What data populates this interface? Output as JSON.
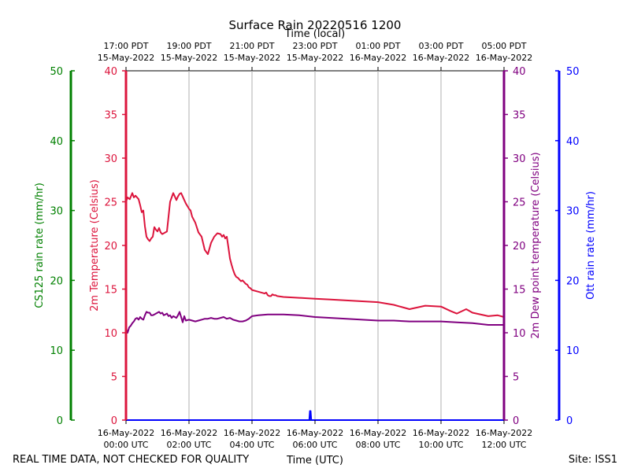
{
  "chart_data": {
    "type": "line",
    "title": "Surface Rain 20220516 1200",
    "top_axis_title": "Time (local)",
    "xlabel": "Time (UTC)",
    "footer_left": "REAL TIME DATA, NOT CHECKED FOR QUALITY",
    "footer_right": "Site: ISS1",
    "xlim": [
      0,
      12
    ],
    "xticks_utc": [
      {
        "x": 0,
        "date": "16-May-2022",
        "time": "00:00 UTC"
      },
      {
        "x": 2,
        "date": "16-May-2022",
        "time": "02:00 UTC"
      },
      {
        "x": 4,
        "date": "16-May-2022",
        "time": "04:00 UTC"
      },
      {
        "x": 6,
        "date": "16-May-2022",
        "time": "06:00 UTC"
      },
      {
        "x": 8,
        "date": "16-May-2022",
        "time": "08:00 UTC"
      },
      {
        "x": 10,
        "date": "16-May-2022",
        "time": "10:00 UTC"
      },
      {
        "x": 12,
        "date": "16-May-2022",
        "time": "12:00 UTC"
      }
    ],
    "xticks_local": [
      {
        "x": 0,
        "time": "17:00 PDT",
        "date": "15-May-2022"
      },
      {
        "x": 2,
        "time": "19:00 PDT",
        "date": "15-May-2022"
      },
      {
        "x": 4,
        "time": "21:00 PDT",
        "date": "15-May-2022"
      },
      {
        "x": 6,
        "time": "23:00 PDT",
        "date": "15-May-2022"
      },
      {
        "x": 8,
        "time": "01:00 PDT",
        "date": "16-May-2022"
      },
      {
        "x": 10,
        "time": "03:00 PDT",
        "date": "16-May-2022"
      },
      {
        "x": 12,
        "time": "05:00 PDT",
        "date": "16-May-2022"
      }
    ],
    "axes": {
      "temperature": {
        "label": "2m Temperature (Celsius)",
        "ylim": [
          0,
          40
        ],
        "ticks": [
          0,
          5,
          10,
          15,
          20,
          25,
          30,
          35,
          40
        ],
        "color": "#dc143c"
      },
      "dewpoint": {
        "label": "2m Dew point temperature (Celsius)",
        "ylim": [
          0,
          40
        ],
        "ticks": [
          0,
          5,
          10,
          15,
          20,
          25,
          30,
          35,
          40
        ],
        "color": "#800080"
      },
      "cs125": {
        "label": "CS125 rain rate (mm/hr)",
        "ylim": [
          0,
          50
        ],
        "ticks": [
          0,
          10,
          20,
          30,
          40,
          50
        ],
        "color": "#008000"
      },
      "ott": {
        "label": "Ott rain rate (mm/hr)",
        "ylim": [
          0,
          50
        ],
        "ticks": [
          0,
          10,
          20,
          30,
          40,
          50
        ],
        "color": "#0000ff"
      }
    },
    "series": [
      {
        "name": "2m Temperature",
        "axis": "temperature",
        "color": "#dc143c",
        "x": [
          0,
          0.05,
          0.12,
          0.2,
          0.25,
          0.3,
          0.4,
          0.45,
          0.5,
          0.55,
          0.6,
          0.65,
          0.7,
          0.75,
          0.8,
          0.85,
          0.9,
          0.95,
          1.0,
          1.05,
          1.1,
          1.15,
          1.2,
          1.3,
          1.4,
          1.5,
          1.6,
          1.65,
          1.7,
          1.75,
          1.8,
          1.85,
          1.9,
          1.95,
          2.0,
          2.05,
          2.1,
          2.2,
          2.3,
          2.4,
          2.5,
          2.6,
          2.7,
          2.8,
          2.9,
          3.0,
          3.05,
          3.1,
          3.15,
          3.2,
          3.25,
          3.3,
          3.35,
          3.4,
          3.45,
          3.5,
          3.55,
          3.6,
          3.65,
          3.7,
          3.75,
          3.8,
          3.85,
          3.9,
          3.95,
          4.0,
          4.2,
          4.4,
          4.45,
          4.5,
          4.55,
          4.6,
          4.65,
          4.7,
          4.75,
          4.8,
          5.0,
          5.5,
          6.0,
          6.5,
          7.0,
          7.5,
          8.0,
          8.5,
          9.0,
          9.5,
          10.0,
          10.3,
          10.5,
          10.8,
          11.0,
          11.5,
          11.8,
          12.0
        ],
        "values": [
          25.0,
          25.5,
          25.3,
          26.0,
          25.5,
          25.7,
          25.3,
          24.6,
          23.8,
          24.0,
          22.2,
          21.0,
          20.7,
          20.5,
          20.8,
          21.0,
          22.1,
          21.8,
          21.6,
          22.0,
          21.5,
          21.3,
          21.4,
          21.6,
          25.0,
          26.0,
          25.2,
          25.6,
          25.9,
          26.0,
          25.6,
          25.2,
          24.8,
          24.5,
          24.2,
          24.0,
          23.3,
          22.6,
          21.5,
          21.0,
          19.5,
          19.0,
          20.3,
          21.0,
          21.4,
          21.3,
          21.0,
          21.2,
          20.8,
          21.0,
          19.8,
          18.5,
          17.8,
          17.2,
          16.7,
          16.4,
          16.3,
          16.1,
          15.9,
          16.0,
          15.8,
          15.6,
          15.5,
          15.2,
          15.1,
          14.9,
          14.7,
          14.5,
          14.6,
          14.3,
          14.2,
          14.2,
          14.4,
          14.3,
          14.3,
          14.2,
          14.1,
          14.0,
          13.9,
          13.8,
          13.7,
          13.6,
          13.5,
          13.2,
          12.7,
          13.1,
          13.0,
          12.5,
          12.2,
          12.7,
          12.3,
          11.9,
          12.0,
          11.8
        ]
      },
      {
        "name": "2m Dew point temperature",
        "axis": "dewpoint",
        "color": "#800080",
        "x": [
          0,
          0.05,
          0.1,
          0.15,
          0.2,
          0.25,
          0.3,
          0.35,
          0.4,
          0.45,
          0.5,
          0.55,
          0.6,
          0.65,
          0.7,
          0.75,
          0.8,
          0.85,
          0.9,
          0.95,
          1.0,
          1.05,
          1.1,
          1.15,
          1.2,
          1.25,
          1.3,
          1.35,
          1.4,
          1.45,
          1.5,
          1.55,
          1.6,
          1.65,
          1.7,
          1.75,
          1.8,
          1.85,
          1.9,
          2.0,
          2.1,
          2.2,
          2.3,
          2.4,
          2.5,
          2.6,
          2.7,
          2.8,
          2.9,
          3.0,
          3.1,
          3.2,
          3.3,
          3.4,
          3.5,
          3.6,
          3.7,
          3.8,
          3.9,
          4.0,
          4.2,
          4.5,
          4.8,
          5.0,
          5.5,
          6.0,
          6.5,
          7.0,
          7.5,
          8.0,
          8.5,
          9.0,
          9.5,
          10.0,
          10.5,
          11.0,
          11.5,
          12.0
        ],
        "values": [
          10.5,
          10.0,
          10.6,
          10.8,
          11.1,
          11.3,
          11.6,
          11.7,
          11.5,
          11.8,
          11.6,
          11.5,
          12.0,
          12.4,
          12.3,
          12.3,
          12.0,
          12.0,
          12.1,
          12.2,
          12.3,
          12.4,
          12.2,
          12.3,
          12.0,
          12.1,
          12.2,
          11.9,
          12.0,
          11.7,
          11.9,
          11.8,
          11.7,
          12.0,
          12.4,
          11.8,
          11.2,
          11.9,
          11.4,
          11.5,
          11.4,
          11.3,
          11.4,
          11.5,
          11.6,
          11.6,
          11.7,
          11.6,
          11.6,
          11.7,
          11.8,
          11.6,
          11.7,
          11.5,
          11.4,
          11.3,
          11.3,
          11.4,
          11.6,
          11.9,
          12.0,
          12.1,
          12.1,
          12.1,
          12.0,
          11.8,
          11.7,
          11.6,
          11.5,
          11.4,
          11.4,
          11.3,
          11.3,
          11.3,
          11.2,
          11.1,
          10.9,
          10.9
        ]
      },
      {
        "name": "CS125 rain rate",
        "axis": "cs125",
        "color": "#008000",
        "x": [
          0,
          12
        ],
        "values": [
          0,
          0
        ]
      },
      {
        "name": "Ott rain rate",
        "axis": "ott",
        "color": "#0000ff",
        "x": [
          0,
          5.82,
          5.84,
          5.86,
          5.88,
          12
        ],
        "values": [
          0,
          0,
          1.3,
          1.3,
          0,
          0
        ]
      }
    ]
  }
}
